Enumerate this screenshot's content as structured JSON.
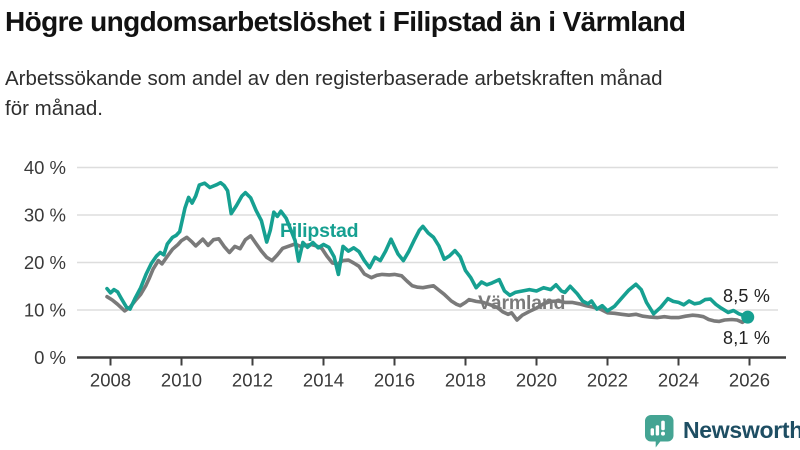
{
  "header": {
    "title": "Högre ungdomsarbetslöshet i Filipstad än i Värmland",
    "subtitle_lines": [
      "Arbetssökande som andel av den registerbaserade arbetskraften månad",
      "för månad."
    ]
  },
  "chart_data": {
    "type": "line",
    "title": "Högre ungdomsarbetslöshet i Filipstad än i Värmland",
    "xlabel": "",
    "ylabel": "Arbetssökande som andel av den registerbaserade arbetskraften",
    "xlim": [
      2007.75,
      2026.6
    ],
    "ylim": [
      0,
      43
    ],
    "grid": true,
    "legend_position": "inline-labels",
    "y_ticks": [
      {
        "v": 0,
        "label": "0 %"
      },
      {
        "v": 10,
        "label": "10 %"
      },
      {
        "v": 20,
        "label": "20 %"
      },
      {
        "v": 30,
        "label": "30 %"
      },
      {
        "v": 40,
        "label": "40 %"
      }
    ],
    "x_ticks": [
      {
        "v": 2008,
        "label": "2008"
      },
      {
        "v": 2010,
        "label": "2010"
      },
      {
        "v": 2012,
        "label": "2012"
      },
      {
        "v": 2014,
        "label": "2014"
      },
      {
        "v": 2016,
        "label": "2016"
      },
      {
        "v": 2018,
        "label": "2018"
      },
      {
        "v": 2020,
        "label": "2020"
      },
      {
        "v": 2022,
        "label": "2022"
      },
      {
        "v": 2024,
        "label": "2024"
      },
      {
        "v": 2026,
        "label": "2026"
      }
    ],
    "series": [
      {
        "name": "Värmland",
        "color": "#7A7A7A",
        "end_label": "8,1 %",
        "end_value": 8.1,
        "points": [
          [
            2007.9,
            12.8
          ],
          [
            2008.05,
            12.1
          ],
          [
            2008.2,
            11.2
          ],
          [
            2008.4,
            9.8
          ],
          [
            2008.55,
            10.6
          ],
          [
            2008.7,
            12.0
          ],
          [
            2008.85,
            13.3
          ],
          [
            2009.0,
            15.2
          ],
          [
            2009.1,
            16.8
          ],
          [
            2009.2,
            18.6
          ],
          [
            2009.35,
            20.4
          ],
          [
            2009.45,
            19.7
          ],
          [
            2009.6,
            21.3
          ],
          [
            2009.75,
            22.8
          ],
          [
            2009.9,
            23.8
          ],
          [
            2010.0,
            24.6
          ],
          [
            2010.15,
            25.3
          ],
          [
            2010.3,
            24.3
          ],
          [
            2010.4,
            23.5
          ],
          [
            2010.6,
            24.9
          ],
          [
            2010.75,
            23.6
          ],
          [
            2010.9,
            24.8
          ],
          [
            2011.05,
            25.0
          ],
          [
            2011.2,
            23.4
          ],
          [
            2011.35,
            22.1
          ],
          [
            2011.5,
            23.4
          ],
          [
            2011.65,
            22.9
          ],
          [
            2011.8,
            24.8
          ],
          [
            2011.95,
            25.6
          ],
          [
            2012.1,
            24.0
          ],
          [
            2012.25,
            22.4
          ],
          [
            2012.4,
            21.1
          ],
          [
            2012.55,
            20.4
          ],
          [
            2012.7,
            21.6
          ],
          [
            2012.85,
            23.0
          ],
          [
            2013.0,
            23.4
          ],
          [
            2013.2,
            23.9
          ],
          [
            2013.35,
            23.4
          ],
          [
            2013.5,
            23.6
          ],
          [
            2013.65,
            23.8
          ],
          [
            2013.8,
            23.5
          ],
          [
            2013.95,
            23.0
          ],
          [
            2014.1,
            21.3
          ],
          [
            2014.25,
            19.9
          ],
          [
            2014.4,
            19.7
          ],
          [
            2014.55,
            20.4
          ],
          [
            2014.7,
            20.5
          ],
          [
            2014.85,
            19.9
          ],
          [
            2015.0,
            19.2
          ],
          [
            2015.15,
            17.6
          ],
          [
            2015.35,
            16.8
          ],
          [
            2015.5,
            17.3
          ],
          [
            2015.65,
            17.5
          ],
          [
            2015.85,
            17.4
          ],
          [
            2016.0,
            17.5
          ],
          [
            2016.2,
            17.2
          ],
          [
            2016.35,
            16.1
          ],
          [
            2016.5,
            15.1
          ],
          [
            2016.65,
            14.8
          ],
          [
            2016.8,
            14.7
          ],
          [
            2016.95,
            14.9
          ],
          [
            2017.1,
            15.1
          ],
          [
            2017.25,
            14.2
          ],
          [
            2017.4,
            13.3
          ],
          [
            2017.6,
            11.9
          ],
          [
            2017.75,
            11.2
          ],
          [
            2017.85,
            10.9
          ],
          [
            2018.0,
            11.6
          ],
          [
            2018.1,
            12.2
          ],
          [
            2018.3,
            11.8
          ],
          [
            2018.5,
            11.6
          ],
          [
            2018.7,
            11.1
          ],
          [
            2018.9,
            10.5
          ],
          [
            2019.05,
            9.6
          ],
          [
            2019.2,
            9.1
          ],
          [
            2019.3,
            9.4
          ],
          [
            2019.45,
            7.9
          ],
          [
            2019.6,
            8.9
          ],
          [
            2019.8,
            9.7
          ],
          [
            2020.0,
            10.4
          ],
          [
            2020.2,
            11.3
          ],
          [
            2020.4,
            11.8
          ],
          [
            2020.6,
            11.9
          ],
          [
            2020.8,
            11.6
          ],
          [
            2021.0,
            11.6
          ],
          [
            2021.2,
            11.3
          ],
          [
            2021.4,
            10.9
          ],
          [
            2021.6,
            10.6
          ],
          [
            2021.8,
            10.2
          ],
          [
            2022.0,
            9.4
          ],
          [
            2022.2,
            9.3
          ],
          [
            2022.4,
            9.1
          ],
          [
            2022.6,
            8.9
          ],
          [
            2022.8,
            9.1
          ],
          [
            2023.0,
            8.7
          ],
          [
            2023.2,
            8.5
          ],
          [
            2023.4,
            8.4
          ],
          [
            2023.6,
            8.6
          ],
          [
            2023.8,
            8.4
          ],
          [
            2024.0,
            8.4
          ],
          [
            2024.2,
            8.7
          ],
          [
            2024.4,
            8.9
          ],
          [
            2024.55,
            8.8
          ],
          [
            2024.7,
            8.6
          ],
          [
            2024.85,
            8.0
          ],
          [
            2025.0,
            7.7
          ],
          [
            2025.15,
            7.6
          ],
          [
            2025.3,
            7.9
          ],
          [
            2025.5,
            8.0
          ],
          [
            2025.65,
            7.9
          ],
          [
            2025.8,
            7.4
          ],
          [
            2025.95,
            8.1
          ]
        ]
      },
      {
        "name": "Filipstad",
        "color": "#16A091",
        "end_label": "8,5 %",
        "end_value": 8.5,
        "end_dot": true,
        "points": [
          [
            2007.9,
            14.5
          ],
          [
            2008.0,
            13.6
          ],
          [
            2008.1,
            14.3
          ],
          [
            2008.2,
            13.8
          ],
          [
            2008.3,
            12.5
          ],
          [
            2008.45,
            10.6
          ],
          [
            2008.55,
            10.2
          ],
          [
            2008.7,
            12.6
          ],
          [
            2008.85,
            14.7
          ],
          [
            2009.0,
            17.5
          ],
          [
            2009.15,
            19.8
          ],
          [
            2009.3,
            21.4
          ],
          [
            2009.4,
            22.1
          ],
          [
            2009.5,
            21.6
          ],
          [
            2009.6,
            23.9
          ],
          [
            2009.75,
            25.3
          ],
          [
            2009.85,
            25.7
          ],
          [
            2009.95,
            26.5
          ],
          [
            2010.1,
            31.5
          ],
          [
            2010.2,
            33.7
          ],
          [
            2010.3,
            32.5
          ],
          [
            2010.4,
            34.0
          ],
          [
            2010.5,
            36.3
          ],
          [
            2010.65,
            36.7
          ],
          [
            2010.8,
            35.8
          ],
          [
            2010.9,
            36.1
          ],
          [
            2011.0,
            36.4
          ],
          [
            2011.1,
            36.8
          ],
          [
            2011.2,
            36.2
          ],
          [
            2011.3,
            35.1
          ],
          [
            2011.4,
            30.3
          ],
          [
            2011.55,
            32.0
          ],
          [
            2011.7,
            34.0
          ],
          [
            2011.8,
            34.7
          ],
          [
            2011.95,
            33.6
          ],
          [
            2012.1,
            31.0
          ],
          [
            2012.25,
            28.8
          ],
          [
            2012.4,
            24.3
          ],
          [
            2012.5,
            26.8
          ],
          [
            2012.6,
            30.6
          ],
          [
            2012.7,
            29.7
          ],
          [
            2012.8,
            30.8
          ],
          [
            2012.95,
            29.3
          ],
          [
            2013.05,
            27.4
          ],
          [
            2013.2,
            24.6
          ],
          [
            2013.3,
            20.3
          ],
          [
            2013.42,
            24.2
          ],
          [
            2013.55,
            23.2
          ],
          [
            2013.7,
            24.2
          ],
          [
            2013.85,
            23.1
          ],
          [
            2014.0,
            23.8
          ],
          [
            2014.15,
            23.2
          ],
          [
            2014.3,
            21.2
          ],
          [
            2014.42,
            17.5
          ],
          [
            2014.55,
            23.4
          ],
          [
            2014.7,
            22.4
          ],
          [
            2014.85,
            23.1
          ],
          [
            2015.0,
            22.3
          ],
          [
            2015.15,
            20.4
          ],
          [
            2015.3,
            18.9
          ],
          [
            2015.45,
            21.1
          ],
          [
            2015.6,
            20.4
          ],
          [
            2015.75,
            22.4
          ],
          [
            2015.9,
            24.9
          ],
          [
            2016.1,
            21.8
          ],
          [
            2016.25,
            20.4
          ],
          [
            2016.4,
            22.3
          ],
          [
            2016.55,
            24.6
          ],
          [
            2016.7,
            26.8
          ],
          [
            2016.8,
            27.6
          ],
          [
            2016.95,
            26.2
          ],
          [
            2017.1,
            25.3
          ],
          [
            2017.25,
            23.5
          ],
          [
            2017.4,
            20.7
          ],
          [
            2017.55,
            21.4
          ],
          [
            2017.7,
            22.5
          ],
          [
            2017.85,
            21.2
          ],
          [
            2018.0,
            18.3
          ],
          [
            2018.15,
            16.8
          ],
          [
            2018.3,
            14.7
          ],
          [
            2018.45,
            15.9
          ],
          [
            2018.6,
            15.3
          ],
          [
            2018.75,
            15.7
          ],
          [
            2018.95,
            16.4
          ],
          [
            2019.1,
            14.0
          ],
          [
            2019.25,
            13.1
          ],
          [
            2019.4,
            13.7
          ],
          [
            2019.6,
            14.0
          ],
          [
            2019.8,
            14.3
          ],
          [
            2020.0,
            14.0
          ],
          [
            2020.2,
            14.7
          ],
          [
            2020.4,
            14.3
          ],
          [
            2020.55,
            15.3
          ],
          [
            2020.7,
            14.0
          ],
          [
            2020.8,
            13.7
          ],
          [
            2020.95,
            15.0
          ],
          [
            2021.15,
            13.4
          ],
          [
            2021.3,
            11.9
          ],
          [
            2021.45,
            11.3
          ],
          [
            2021.55,
            11.9
          ],
          [
            2021.7,
            10.2
          ],
          [
            2021.85,
            10.9
          ],
          [
            2022.0,
            9.8
          ],
          [
            2022.2,
            10.8
          ],
          [
            2022.4,
            12.5
          ],
          [
            2022.6,
            14.2
          ],
          [
            2022.8,
            15.4
          ],
          [
            2022.95,
            14.3
          ],
          [
            2023.1,
            11.6
          ],
          [
            2023.3,
            9.2
          ],
          [
            2023.5,
            10.6
          ],
          [
            2023.7,
            12.4
          ],
          [
            2023.85,
            11.8
          ],
          [
            2024.0,
            11.6
          ],
          [
            2024.15,
            11.1
          ],
          [
            2024.3,
            11.9
          ],
          [
            2024.45,
            11.3
          ],
          [
            2024.6,
            11.5
          ],
          [
            2024.75,
            12.2
          ],
          [
            2024.9,
            12.3
          ],
          [
            2025.05,
            11.2
          ],
          [
            2025.2,
            10.4
          ],
          [
            2025.4,
            9.5
          ],
          [
            2025.55,
            9.9
          ],
          [
            2025.7,
            9.2
          ],
          [
            2025.85,
            8.8
          ],
          [
            2025.95,
            8.5
          ]
        ]
      }
    ]
  },
  "footer": {
    "brand": "Newsworthy"
  },
  "colors": {
    "filipstad": "#16A091",
    "varmland": "#7A7A7A",
    "gridline": "#DDDDDD",
    "axis": "#3F3F3F",
    "axis_text": "#3A3A3A",
    "brand_icon": "#44A493",
    "brand_text": "#1E4E63"
  }
}
